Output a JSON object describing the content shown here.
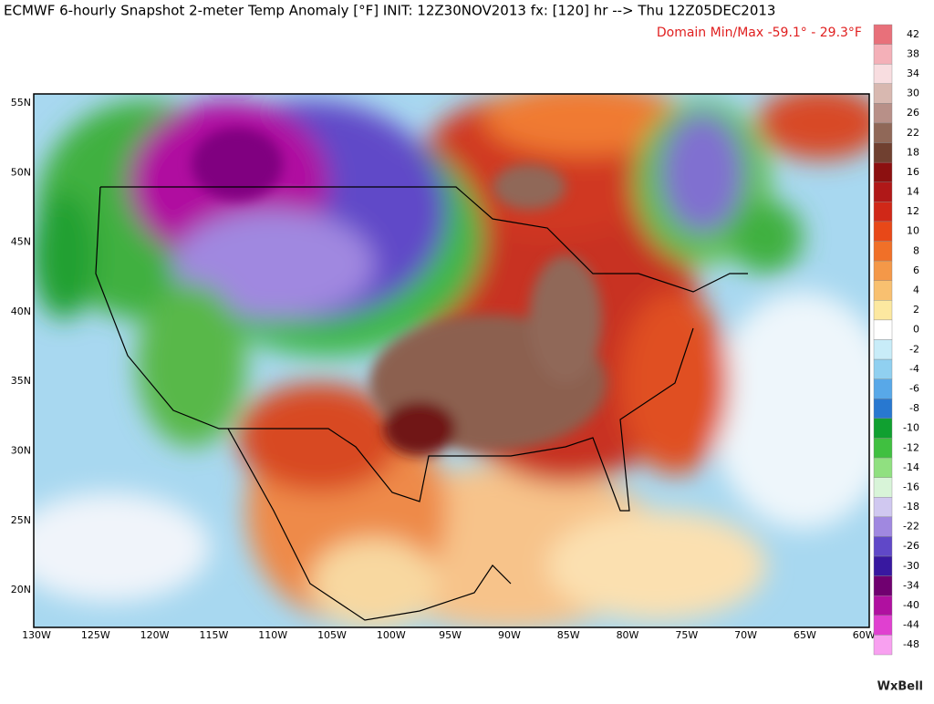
{
  "header": {
    "title": "ECMWF 6-hourly Snapshot 2-meter Temp Anomaly [°F] INIT: 12Z30NOV2013 fx: [120] hr --> Thu 12Z05DEC2013",
    "subtitle": "Domain Min/Max -59.1° -  29.3°F"
  },
  "map": {
    "lat_labels": [
      "55N",
      "50N",
      "45N",
      "40N",
      "35N",
      "30N",
      "25N",
      "20N"
    ],
    "lon_labels": [
      "130W",
      "125W",
      "120W",
      "115W",
      "110W",
      "105W",
      "100W",
      "95W",
      "90W",
      "85W",
      "80W",
      "75W",
      "70W",
      "65W",
      "60W"
    ]
  },
  "colorbar": {
    "labels": [
      42,
      38,
      34,
      30,
      26,
      22,
      18,
      16,
      14,
      12,
      10,
      8,
      6,
      4,
      2,
      0,
      -2,
      -4,
      -6,
      -8,
      -10,
      -12,
      -14,
      -16,
      -18,
      -22,
      -26,
      -30,
      -34,
      -40,
      -44,
      -48
    ],
    "colors": [
      "#e8707a",
      "#f4b0b8",
      "#f8dde0",
      "#d8b8b0",
      "#b89088",
      "#906858",
      "#704030",
      "#8c1010",
      "#b01818",
      "#d02818",
      "#e84818",
      "#f07028",
      "#f49848",
      "#f8c070",
      "#fce8a0",
      "#ffffff",
      "#c8ecf8",
      "#90d0f0",
      "#58a8e8",
      "#2878d0",
      "#10a030",
      "#40c040",
      "#90e080",
      "#d8f4d8",
      "#d0c8f0",
      "#a088e0",
      "#6048c8",
      "#3818a0",
      "#700070",
      "#b010a0",
      "#e040d0",
      "#f8a0f0"
    ]
  },
  "footer": {
    "logo": "WxBell"
  }
}
